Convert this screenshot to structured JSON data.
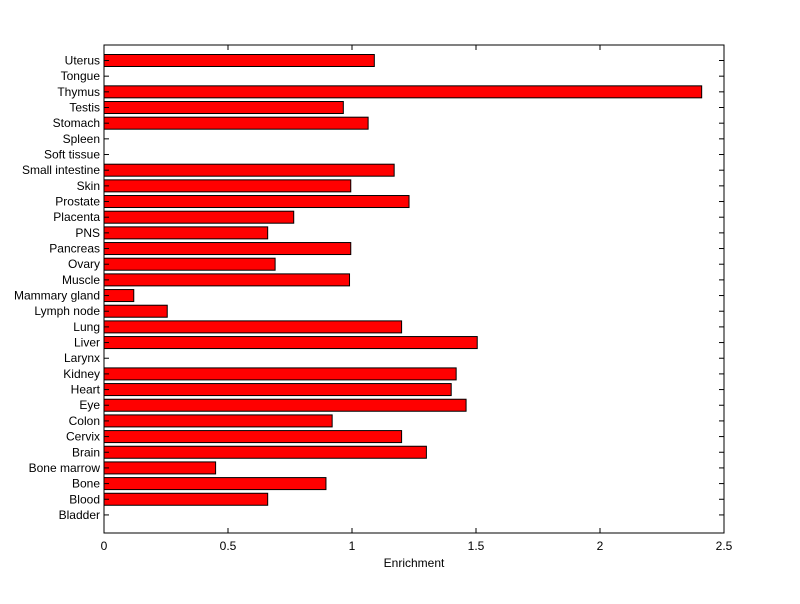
{
  "colors": {
    "bar_fill": "#ff0000",
    "bar_stroke": "#000000",
    "axis": "#000000",
    "background": "#ffffff"
  },
  "chart_data": {
    "type": "bar",
    "orientation": "horizontal",
    "title": "",
    "xlabel": "Enrichment",
    "ylabel": "",
    "xlim": [
      0,
      2.5
    ],
    "xticks": [
      0,
      0.5,
      1,
      1.5,
      2,
      2.5
    ],
    "xtick_labels": [
      "0",
      "0.5",
      "1",
      "1.5",
      "2",
      "2.5"
    ],
    "grid": false,
    "legend": "none",
    "categories": [
      "Uterus",
      "Tongue",
      "Thymus",
      "Testis",
      "Stomach",
      "Spleen",
      "Soft tissue",
      "Small intestine",
      "Skin",
      "Prostate",
      "Placenta",
      "PNS",
      "Pancreas",
      "Ovary",
      "Muscle",
      "Mammary gland",
      "Lymph node",
      "Lung",
      "Liver",
      "Larynx",
      "Kidney",
      "Heart",
      "Eye",
      "Colon",
      "Cervix",
      "Brain",
      "Bone marrow",
      "Bone",
      "Blood",
      "Bladder"
    ],
    "values": [
      1.09,
      0,
      2.41,
      0.965,
      1.065,
      0,
      0,
      1.17,
      0.995,
      1.23,
      0.765,
      0.66,
      0.995,
      0.69,
      0.99,
      0.12,
      0.255,
      1.2,
      1.505,
      0,
      1.42,
      1.4,
      1.46,
      0.92,
      1.2,
      1.3,
      0.45,
      0.895,
      0.66,
      0
    ]
  }
}
